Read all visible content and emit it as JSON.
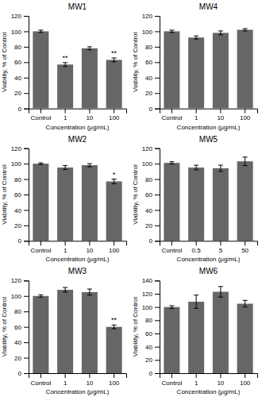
{
  "chart_data": [
    {
      "type": "bar",
      "title": "MW1",
      "categories": [
        "Control",
        "1",
        "10",
        "100"
      ],
      "values": [
        100,
        57,
        78,
        63
      ],
      "errors": [
        1.5,
        2.5,
        2.0,
        2.5
      ],
      "xlabel": "Concentration (μg/mL)",
      "ylabel": "Viability, % of Control",
      "ylim": [
        0,
        120
      ],
      "yticks": [
        0,
        20,
        40,
        60,
        80,
        100,
        120
      ],
      "color": "#666666",
      "annotations": [
        {
          "text": "**",
          "x": "1"
        },
        {
          "text": "**",
          "x": "100"
        }
      ]
    },
    {
      "type": "bar",
      "title": "MW4",
      "categories": [
        "Control",
        "1",
        "10",
        "100"
      ],
      "values": [
        100,
        92,
        98,
        102
      ],
      "errors": [
        1.5,
        2.0,
        2.5,
        1.5
      ],
      "xlabel": "Concentration (μg/mL)",
      "ylabel": "Viability, % of Control",
      "ylim": [
        0,
        120
      ],
      "yticks": [
        0,
        20,
        40,
        60,
        80,
        100,
        120
      ],
      "color": "#666666"
    },
    {
      "type": "bar",
      "title": "MW2",
      "categories": [
        "Control",
        "1",
        "10",
        "100"
      ],
      "values": [
        100,
        95,
        98,
        77
      ],
      "errors": [
        1.0,
        2.5,
        2.0,
        3.0
      ],
      "xlabel": "Concentration (μg/mL)",
      "ylabel": "Viability, % of Control",
      "ylim": [
        0,
        120
      ],
      "yticks": [
        0,
        20,
        40,
        60,
        80,
        100,
        120
      ],
      "color": "#666666",
      "annotations": [
        {
          "text": "*",
          "x": "100"
        }
      ]
    },
    {
      "type": "bar",
      "title": "MW5",
      "categories": [
        "Control",
        "0.5",
        "5",
        "50"
      ],
      "values": [
        101,
        95,
        94,
        103
      ],
      "errors": [
        1.5,
        3.0,
        4.0,
        5.5
      ],
      "xlabel": "Concentration (μg/mL)",
      "ylabel": "Viability, % of Control",
      "ylim": [
        0,
        120
      ],
      "yticks": [
        0,
        20,
        40,
        60,
        80,
        100,
        120
      ],
      "color": "#666666"
    },
    {
      "type": "bar",
      "title": "MW3",
      "categories": [
        "Control",
        "1",
        "10",
        "100"
      ],
      "values": [
        100,
        108,
        105,
        60
      ],
      "errors": [
        1.5,
        3.0,
        4.0,
        2.5
      ],
      "xlabel": "Concentration (μg/mL)",
      "ylabel": "Viability, % of Control",
      "ylim": [
        0,
        120
      ],
      "yticks": [
        0,
        20,
        40,
        60,
        80,
        100,
        120
      ],
      "color": "#666666",
      "annotations": [
        {
          "text": "**",
          "x": "100"
        }
      ]
    },
    {
      "type": "bar",
      "title": "MW6",
      "categories": [
        "Control",
        "1",
        "10",
        "100"
      ],
      "values": [
        100,
        108,
        123,
        105
      ],
      "errors": [
        2.0,
        10.0,
        8.0,
        5.0
      ],
      "xlabel": "Concentration (μg/mL)",
      "ylabel": "Viability, % of Control",
      "ylim": [
        0,
        140
      ],
      "yticks": [
        0,
        20,
        40,
        60,
        80,
        100,
        120,
        140
      ],
      "color": "#666666"
    }
  ]
}
